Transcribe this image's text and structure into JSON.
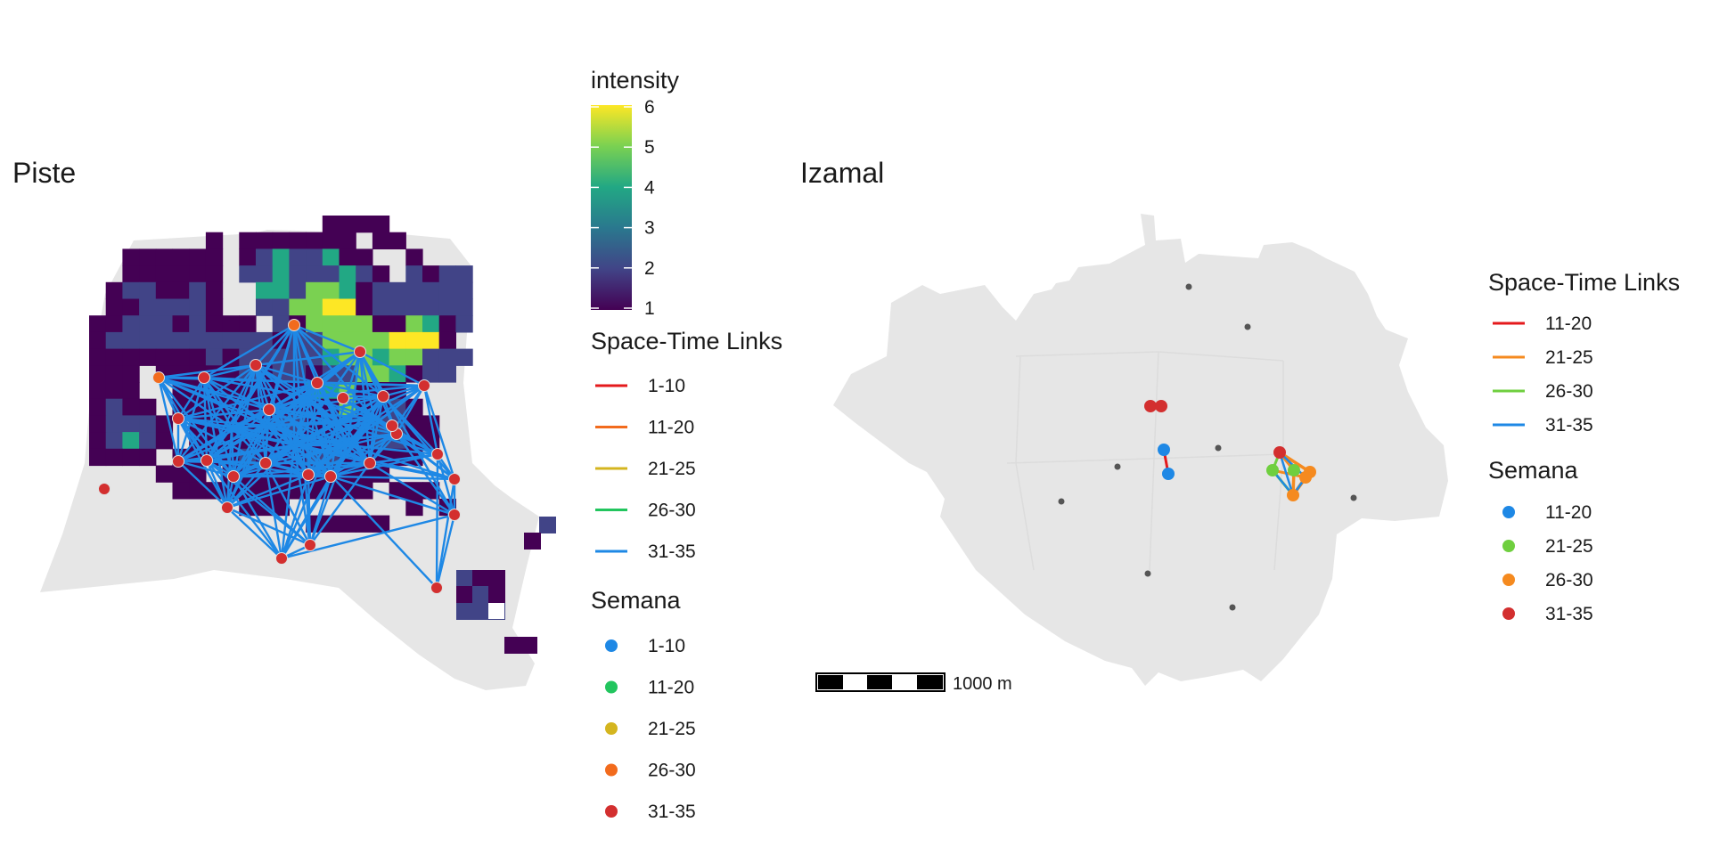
{
  "panels": {
    "piste": {
      "title": "Piste"
    },
    "izamal": {
      "title": "Izamal"
    }
  },
  "intensity_legend": {
    "title": "intensity",
    "ticks": [
      "6",
      "5",
      "4",
      "3",
      "2",
      "1"
    ],
    "colors": [
      "#fde725",
      "#7ad151",
      "#22a884",
      "#2a788e",
      "#414487",
      "#440154"
    ]
  },
  "piste_legend": {
    "links_title": "Space-Time Links",
    "links": [
      {
        "label": "1-10",
        "color": "#e41a1c"
      },
      {
        "label": "11-20",
        "color": "#f26b1d"
      },
      {
        "label": "21-25",
        "color": "#d4b51f"
      },
      {
        "label": "26-30",
        "color": "#22c55e"
      },
      {
        "label": "31-35",
        "color": "#1e88e5"
      }
    ],
    "weeks_title": "Semana",
    "weeks": [
      {
        "label": "1-10",
        "color": "#1e88e5"
      },
      {
        "label": "11-20",
        "color": "#22c55e"
      },
      {
        "label": "21-25",
        "color": "#d4b51f"
      },
      {
        "label": "26-30",
        "color": "#f26b1d"
      },
      {
        "label": "31-35",
        "color": "#d32f2f"
      }
    ]
  },
  "izamal_legend": {
    "links_title": "Space-Time Links",
    "links": [
      {
        "label": "11-20",
        "color": "#e41a1c"
      },
      {
        "label": "21-25",
        "color": "#f58a1f"
      },
      {
        "label": "26-30",
        "color": "#6fcf3f"
      },
      {
        "label": "31-35",
        "color": "#1e88e5"
      }
    ],
    "weeks_title": "Semana",
    "weeks": [
      {
        "label": "11-20",
        "color": "#1e88e5"
      },
      {
        "label": "21-25",
        "color": "#6fcf3f"
      },
      {
        "label": "26-30",
        "color": "#f58a1f"
      },
      {
        "label": "31-35",
        "color": "#d32f2f"
      }
    ]
  },
  "scale_bar": {
    "label": "1000 m"
  },
  "colors": {
    "base_map": "#e6e6e6",
    "link_main": "#1e88e5",
    "event_point": "#d32f2f"
  }
}
